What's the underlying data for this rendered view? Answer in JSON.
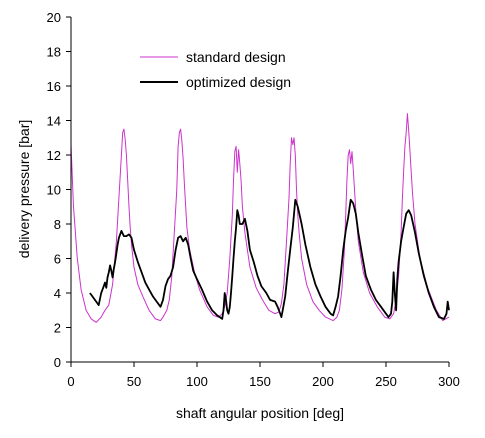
{
  "chart_data": {
    "type": "line",
    "xlabel": "shaft angular position [deg]",
    "ylabel": "delivery pressure [bar]",
    "xlim": [
      0,
      300
    ],
    "ylim": [
      0,
      20
    ],
    "xticks": [
      "0",
      "50",
      "100",
      "150",
      "200",
      "250",
      "300"
    ],
    "yticks": [
      "0",
      "2",
      "4",
      "6",
      "8",
      "10",
      "12",
      "14",
      "16",
      "18",
      "20"
    ],
    "grid": false,
    "legend_position": "top-center",
    "series": [
      {
        "name": "standard design",
        "color": "#cc33cc",
        "x": [
          0,
          2,
          5,
          8,
          12,
          16,
          20,
          24,
          27,
          30,
          33,
          36,
          38,
          40,
          41,
          42,
          43,
          44,
          45,
          46,
          47,
          48,
          50,
          53,
          57,
          62,
          67,
          71,
          73,
          76,
          78,
          80,
          82,
          84,
          85,
          86,
          87,
          88,
          89,
          90,
          91,
          92,
          94,
          98,
          102,
          108,
          113,
          117,
          120,
          122,
          124,
          126,
          128,
          129,
          130,
          131,
          132,
          133,
          134,
          135,
          136,
          138,
          142,
          147,
          152,
          157,
          162,
          165,
          167,
          169,
          171,
          173,
          174,
          175,
          176,
          177,
          178,
          179,
          180,
          181,
          183,
          187,
          192,
          197,
          202,
          208,
          211,
          213,
          215,
          217,
          218,
          219,
          220,
          221,
          222,
          223,
          224,
          225,
          226,
          228,
          232,
          237,
          243,
          249,
          253,
          256,
          258,
          260,
          262,
          263,
          264,
          265,
          266,
          267,
          268,
          269,
          270,
          271,
          273,
          277,
          283,
          290,
          295,
          300
        ],
        "y": [
          12.6,
          9.0,
          6.0,
          4.2,
          3.0,
          2.5,
          2.3,
          2.6,
          3.0,
          3.3,
          4.5,
          7.0,
          9.5,
          12.0,
          13.3,
          13.5,
          12.9,
          12.0,
          10.5,
          9.0,
          7.8,
          6.8,
          5.5,
          4.5,
          3.8,
          3.0,
          2.5,
          2.4,
          2.6,
          3.0,
          3.6,
          5.0,
          7.5,
          10.0,
          12.5,
          13.3,
          13.5,
          12.8,
          11.8,
          10.3,
          9.0,
          7.8,
          6.6,
          5.2,
          4.2,
          3.2,
          2.7,
          2.6,
          2.8,
          3.2,
          4.0,
          6.0,
          8.5,
          10.5,
          12.2,
          12.5,
          11.0,
          12.3,
          11.5,
          10.5,
          9.0,
          7.5,
          5.5,
          4.3,
          3.6,
          3.0,
          2.8,
          2.9,
          3.4,
          4.5,
          7.0,
          9.5,
          11.5,
          13.0,
          12.6,
          13.0,
          12.0,
          10.0,
          8.5,
          7.5,
          6.0,
          4.5,
          3.5,
          3.0,
          2.6,
          2.4,
          2.6,
          3.0,
          4.2,
          6.5,
          8.5,
          10.5,
          12.0,
          12.3,
          11.5,
          12.2,
          11.2,
          10.0,
          8.8,
          7.0,
          5.2,
          4.0,
          3.2,
          2.6,
          2.5,
          2.8,
          3.6,
          5.0,
          7.5,
          9.5,
          11.0,
          12.5,
          13.3,
          14.4,
          13.4,
          12.3,
          11.0,
          9.8,
          8.0,
          6.0,
          4.3,
          3.0,
          2.4,
          2.6
        ]
      },
      {
        "name": "optimized design",
        "color": "#000000",
        "x": [
          15,
          17,
          20,
          22,
          24,
          25,
          26,
          27,
          28,
          29,
          30,
          31,
          32,
          33,
          34,
          35,
          36,
          37,
          38,
          40,
          42,
          44,
          46,
          48,
          50,
          53,
          56,
          59,
          62,
          65,
          68,
          71,
          73,
          75,
          77,
          79,
          81,
          83,
          85,
          87,
          89,
          91,
          93,
          95,
          97,
          100,
          104,
          108,
          112,
          116,
          120,
          121,
          122,
          123,
          124,
          125,
          126,
          127,
          128,
          129,
          130,
          131,
          132,
          133,
          134,
          136,
          138,
          140,
          142,
          145,
          148,
          151,
          155,
          158,
          162,
          164,
          166,
          167,
          168,
          170,
          172,
          174,
          176,
          178,
          180,
          183,
          186,
          190,
          194,
          198,
          202,
          206,
          208,
          210,
          212,
          214,
          216,
          218,
          220,
          222,
          224,
          226,
          228,
          231,
          234,
          238,
          242,
          246,
          250,
          252,
          254,
          255,
          256,
          257,
          258,
          259,
          260,
          262,
          264,
          266,
          268,
          270,
          273,
          276,
          280,
          284,
          288,
          292,
          296,
          298,
          299,
          300
        ],
        "y": [
          4.0,
          3.8,
          3.5,
          3.3,
          4.0,
          4.2,
          4.4,
          4.6,
          4.3,
          4.9,
          5.2,
          5.6,
          5.3,
          4.9,
          5.4,
          5.8,
          6.3,
          6.8,
          7.2,
          7.6,
          7.3,
          7.3,
          7.4,
          7.2,
          6.5,
          5.8,
          5.2,
          4.6,
          4.2,
          3.8,
          3.5,
          3.2,
          3.6,
          4.4,
          4.8,
          5.0,
          5.5,
          6.5,
          7.2,
          7.3,
          7.0,
          7.2,
          6.8,
          6.0,
          5.3,
          4.8,
          4.2,
          3.5,
          3.0,
          2.7,
          2.5,
          3.0,
          4.0,
          3.6,
          3.0,
          2.8,
          3.2,
          4.0,
          5.0,
          6.0,
          7.0,
          7.8,
          8.8,
          8.5,
          8.0,
          8.0,
          8.3,
          7.6,
          6.5,
          5.8,
          5.0,
          4.4,
          4.0,
          3.6,
          3.5,
          3.2,
          2.8,
          2.6,
          3.0,
          3.8,
          5.2,
          6.5,
          7.8,
          9.4,
          9.0,
          8.0,
          6.8,
          5.5,
          4.5,
          3.8,
          3.2,
          2.8,
          2.7,
          3.2,
          3.8,
          5.0,
          6.5,
          7.6,
          8.4,
          9.4,
          9.2,
          8.6,
          7.5,
          6.2,
          5.0,
          4.2,
          3.6,
          3.2,
          2.8,
          2.6,
          2.8,
          3.5,
          5.2,
          4.0,
          3.0,
          4.8,
          5.8,
          7.0,
          7.8,
          8.6,
          8.8,
          8.5,
          7.5,
          6.3,
          5.0,
          4.0,
          3.2,
          2.6,
          2.5,
          2.8,
          3.5,
          3.0
        ]
      }
    ]
  }
}
